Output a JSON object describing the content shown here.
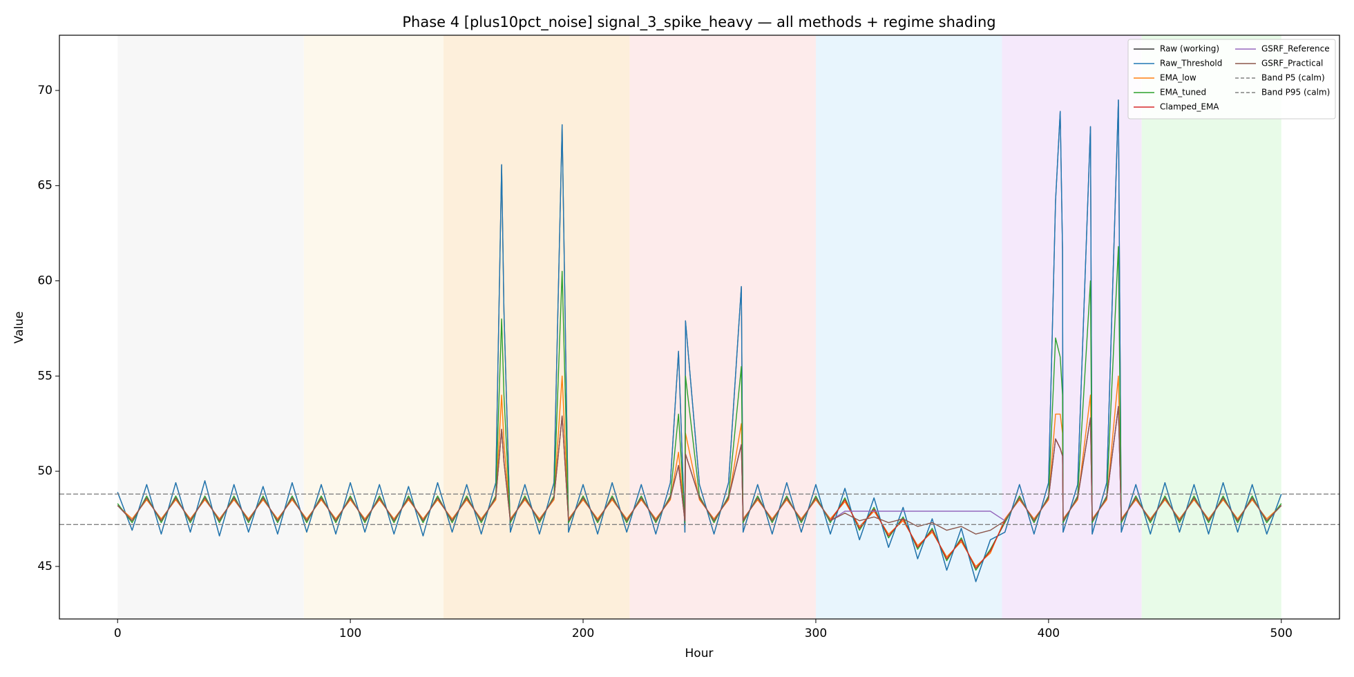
{
  "chart_data": {
    "type": "line",
    "title": "Phase 4 [plus10pct_noise] signal_3_spike_heavy — all methods + regime shading",
    "xlabel": "Hour",
    "ylabel": "Value",
    "xlim": [
      -25,
      525
    ],
    "xticks": [
      0,
      100,
      200,
      300,
      400,
      500
    ],
    "ylim": [
      42.24,
      72.9
    ],
    "yticks": [
      45,
      50,
      55,
      60,
      65,
      70
    ],
    "legend": "upper right",
    "regions": [
      {
        "start": 0,
        "end": 80,
        "color": "#f7f7f7"
      },
      {
        "start": 80,
        "end": 140,
        "color": "#fdf8ec"
      },
      {
        "start": 140,
        "end": 220,
        "color": "#fdefdb"
      },
      {
        "start": 220,
        "end": 300,
        "color": "#fdebeb"
      },
      {
        "start": 300,
        "end": 380,
        "color": "#e8f5fd"
      },
      {
        "start": 380,
        "end": 440,
        "color": "#f5e9fb"
      },
      {
        "start": 440,
        "end": 500,
        "color": "#e8fbe8"
      }
    ],
    "x": [
      0,
      6.25,
      12.5,
      18.75,
      25,
      31.25,
      37.5,
      43.75,
      50,
      56.25,
      62.5,
      68.75,
      75,
      81.25,
      87.5,
      93.75,
      100,
      106.25,
      112.5,
      118.75,
      125,
      131.25,
      137.5,
      143.75,
      150,
      156.25,
      162.5,
      165,
      166,
      168.75,
      175,
      181.25,
      187.5,
      191,
      193.75,
      200,
      206.25,
      212.5,
      218.75,
      225,
      231.25,
      237.5,
      241,
      243.75,
      244,
      250,
      256.25,
      262.5,
      268,
      268.75,
      275,
      281.25,
      287.5,
      293.75,
      300,
      306.25,
      312.5,
      318.75,
      325,
      331.25,
      337.5,
      343.75,
      350,
      356.25,
      362.5,
      368.75,
      375,
      381.25,
      387.5,
      393.75,
      400,
      403,
      405,
      406,
      406.25,
      412.5,
      418,
      418.75,
      425,
      430,
      431.25,
      437.5,
      443.75,
      450,
      456.25,
      462.5,
      468.75,
      475,
      481.25,
      487.5,
      493.75,
      500
    ],
    "series": [
      {
        "name": "Raw (working)",
        "color": "#333333",
        "values": [
          48.9,
          46.9,
          49.3,
          46.7,
          49.4,
          46.8,
          49.5,
          46.6,
          49.3,
          46.8,
          49.2,
          46.7,
          49.4,
          46.8,
          49.3,
          46.7,
          49.4,
          46.8,
          49.3,
          46.7,
          49.2,
          46.6,
          49.4,
          46.8,
          49.3,
          46.7,
          49.4,
          66.1,
          58.4,
          46.8,
          49.3,
          46.7,
          49.4,
          68.2,
          46.8,
          49.3,
          46.7,
          49.4,
          46.8,
          49.3,
          46.7,
          49.4,
          56.3,
          46.8,
          57.9,
          49.3,
          46.7,
          49.4,
          59.7,
          46.8,
          49.3,
          46.7,
          49.4,
          46.8,
          49.3,
          46.7,
          49.1,
          46.4,
          48.6,
          46.0,
          48.1,
          45.4,
          47.5,
          44.8,
          47.0,
          44.2,
          46.4,
          46.8,
          49.3,
          46.7,
          49.4,
          64.2,
          68.9,
          61.6,
          46.8,
          49.3,
          68.1,
          46.7,
          49.4,
          69.5,
          46.8,
          49.3,
          46.7,
          49.4,
          46.8,
          49.3,
          46.7,
          49.4,
          46.8,
          49.3,
          46.7,
          48.8
        ]
      },
      {
        "name": "Raw_Threshold",
        "color": "#1f77b4",
        "values": [
          48.9,
          46.9,
          49.3,
          46.7,
          49.4,
          46.8,
          49.5,
          46.6,
          49.3,
          46.8,
          49.2,
          46.7,
          49.4,
          46.8,
          49.3,
          46.7,
          49.4,
          46.8,
          49.3,
          46.7,
          49.2,
          46.6,
          49.4,
          46.8,
          49.3,
          46.7,
          49.4,
          66.1,
          58.4,
          46.8,
          49.3,
          46.7,
          49.4,
          68.2,
          46.8,
          49.3,
          46.7,
          49.4,
          46.8,
          49.3,
          46.7,
          49.4,
          56.3,
          46.8,
          57.9,
          49.3,
          46.7,
          49.4,
          59.7,
          46.8,
          49.3,
          46.7,
          49.4,
          46.8,
          49.3,
          46.7,
          49.1,
          46.4,
          48.6,
          46.0,
          48.1,
          45.4,
          47.5,
          44.8,
          47.0,
          44.2,
          46.4,
          46.8,
          49.3,
          46.7,
          49.4,
          64.2,
          68.9,
          61.6,
          46.8,
          49.3,
          68.1,
          46.7,
          49.4,
          69.5,
          46.8,
          49.3,
          46.7,
          49.4,
          46.8,
          49.3,
          46.7,
          49.4,
          46.8,
          49.3,
          46.7,
          48.8
        ]
      },
      {
        "name": "EMA_low",
        "color": "#ff7f0e",
        "values": [
          48.2,
          47.5,
          48.5,
          47.5,
          48.5,
          47.5,
          48.5,
          47.5,
          48.5,
          47.5,
          48.5,
          47.5,
          48.5,
          47.5,
          48.5,
          47.5,
          48.5,
          47.5,
          48.5,
          47.5,
          48.5,
          47.5,
          48.5,
          47.5,
          48.5,
          47.5,
          48.5,
          54.0,
          51.5,
          47.5,
          48.5,
          47.5,
          48.5,
          55.0,
          47.5,
          48.5,
          47.5,
          48.5,
          47.5,
          48.5,
          47.5,
          48.5,
          51.0,
          47.5,
          52.0,
          48.5,
          47.5,
          48.5,
          52.5,
          47.5,
          48.5,
          47.5,
          48.5,
          47.5,
          48.5,
          47.5,
          48.4,
          47.1,
          47.9,
          46.7,
          47.4,
          46.1,
          46.8,
          45.5,
          46.3,
          45.0,
          45.7,
          47.5,
          48.5,
          47.5,
          48.5,
          53.0,
          53.0,
          52.0,
          47.5,
          48.5,
          54.0,
          47.5,
          48.5,
          55.0,
          47.5,
          48.5,
          47.5,
          48.5,
          47.5,
          48.5,
          47.5,
          48.5,
          47.5,
          48.5,
          47.5,
          48.2
        ]
      },
      {
        "name": "EMA_tuned",
        "color": "#2ca02c",
        "values": [
          48.3,
          47.3,
          48.7,
          47.3,
          48.7,
          47.3,
          48.7,
          47.3,
          48.7,
          47.3,
          48.7,
          47.3,
          48.7,
          47.3,
          48.7,
          47.3,
          48.7,
          47.3,
          48.7,
          47.3,
          48.7,
          47.3,
          48.7,
          47.3,
          48.7,
          47.3,
          48.7,
          58.0,
          54.0,
          47.3,
          48.7,
          47.3,
          48.7,
          60.5,
          47.3,
          48.7,
          47.3,
          48.7,
          47.3,
          48.7,
          47.3,
          48.7,
          53.0,
          47.3,
          55.0,
          48.7,
          47.3,
          48.7,
          55.5,
          47.3,
          48.7,
          47.3,
          48.7,
          47.3,
          48.7,
          47.3,
          48.6,
          46.9,
          48.1,
          46.5,
          47.6,
          45.9,
          47.0,
          45.3,
          46.5,
          44.8,
          45.9,
          47.3,
          48.7,
          47.3,
          48.7,
          57.0,
          56.0,
          54.0,
          47.3,
          48.7,
          60.0,
          47.3,
          48.7,
          61.8,
          47.3,
          48.7,
          47.3,
          48.7,
          47.3,
          48.7,
          47.3,
          48.7,
          47.3,
          48.7,
          47.3,
          48.3
        ]
      },
      {
        "name": "Clamped_EMA",
        "color": "#d62728",
        "values": [
          48.2,
          47.4,
          48.6,
          47.4,
          48.6,
          47.4,
          48.6,
          47.4,
          48.6,
          47.4,
          48.6,
          47.4,
          48.6,
          47.4,
          48.6,
          47.4,
          48.6,
          47.4,
          48.6,
          47.4,
          48.6,
          47.4,
          48.6,
          47.4,
          48.6,
          47.4,
          48.6,
          52.2,
          50.5,
          47.4,
          48.6,
          47.4,
          48.6,
          52.9,
          47.4,
          48.6,
          47.4,
          48.6,
          47.4,
          48.6,
          47.4,
          48.6,
          50.3,
          47.4,
          50.9,
          48.6,
          47.4,
          48.6,
          51.4,
          47.4,
          48.6,
          47.4,
          48.6,
          47.4,
          48.6,
          47.4,
          48.5,
          47.0,
          48.0,
          46.6,
          47.5,
          46.0,
          46.9,
          45.4,
          46.4,
          44.9,
          45.8,
          47.4,
          48.6,
          47.4,
          48.6,
          51.7,
          51.2,
          50.8,
          47.4,
          48.6,
          52.8,
          47.4,
          48.6,
          53.4,
          47.4,
          48.6,
          47.4,
          48.6,
          47.4,
          48.6,
          47.4,
          48.6,
          47.4,
          48.6,
          47.4,
          48.2
        ]
      },
      {
        "name": "GSRF_Reference",
        "color": "#9467bd",
        "values": [
          48.2,
          47.4,
          48.6,
          47.4,
          48.6,
          47.4,
          48.6,
          47.4,
          48.6,
          47.4,
          48.6,
          47.4,
          48.6,
          47.4,
          48.6,
          47.4,
          48.6,
          47.4,
          48.6,
          47.4,
          48.6,
          47.4,
          48.6,
          47.4,
          48.6,
          47.4,
          48.6,
          52.2,
          50.5,
          47.4,
          48.6,
          47.4,
          48.6,
          52.9,
          47.4,
          48.6,
          47.4,
          48.6,
          47.4,
          48.6,
          47.4,
          48.6,
          50.3,
          47.4,
          50.9,
          48.6,
          47.4,
          48.6,
          51.4,
          47.4,
          48.6,
          47.4,
          48.6,
          47.4,
          48.6,
          47.4,
          47.9,
          47.9,
          47.9,
          47.9,
          47.9,
          47.9,
          47.9,
          47.9,
          47.9,
          47.9,
          47.9,
          47.4,
          48.6,
          47.4,
          48.6,
          51.7,
          51.2,
          50.8,
          47.4,
          48.6,
          52.8,
          47.4,
          48.6,
          53.4,
          47.4,
          48.6,
          47.4,
          48.6,
          47.4,
          48.6,
          47.4,
          48.6,
          47.4,
          48.6,
          47.4,
          48.2
        ]
      },
      {
        "name": "GSRF_Practical",
        "color": "#8c564b",
        "values": [
          48.2,
          47.4,
          48.6,
          47.4,
          48.6,
          47.4,
          48.6,
          47.4,
          48.6,
          47.4,
          48.6,
          47.4,
          48.6,
          47.4,
          48.6,
          47.4,
          48.6,
          47.4,
          48.6,
          47.4,
          48.6,
          47.4,
          48.6,
          47.4,
          48.6,
          47.4,
          48.6,
          52.2,
          50.5,
          47.4,
          48.6,
          47.4,
          48.6,
          52.9,
          47.4,
          48.6,
          47.4,
          48.6,
          47.4,
          48.6,
          47.4,
          48.6,
          50.3,
          47.4,
          50.9,
          48.6,
          47.4,
          48.6,
          51.4,
          47.4,
          48.6,
          47.4,
          48.6,
          47.4,
          48.6,
          47.4,
          47.8,
          47.4,
          47.6,
          47.3,
          47.5,
          47.1,
          47.3,
          46.9,
          47.1,
          46.7,
          46.9,
          47.4,
          48.6,
          47.4,
          48.6,
          51.7,
          51.2,
          50.8,
          47.4,
          48.6,
          52.8,
          47.4,
          48.6,
          53.4,
          47.4,
          48.6,
          47.4,
          48.6,
          47.4,
          48.6,
          47.4,
          48.6,
          47.4,
          48.6,
          47.4,
          48.2
        ]
      }
    ],
    "hlines": [
      {
        "name": "Band P5 (calm)",
        "value": 47.2,
        "color": "#808080",
        "dashed": true
      },
      {
        "name": "Band P95 (calm)",
        "value": 48.8,
        "color": "#808080",
        "dashed": true
      }
    ]
  }
}
